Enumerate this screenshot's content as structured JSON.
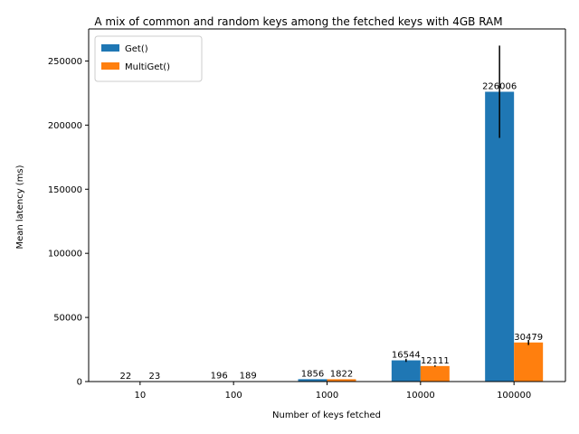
{
  "chart_data": {
    "type": "bar",
    "title": "A mix of common and random keys among the fetched keys with 4GB RAM",
    "xlabel": "Number of keys fetched",
    "ylabel": "Mean latency (ms)",
    "categories": [
      "10",
      "100",
      "1000",
      "10000",
      "100000"
    ],
    "ylim": [
      0,
      275000
    ],
    "yticks": [
      0,
      50000,
      100000,
      150000,
      200000,
      250000
    ],
    "legend_position": "top-left",
    "grid": false,
    "series": [
      {
        "name": "Get()",
        "color": "#1f77b4",
        "values": [
          22,
          196,
          1856,
          16544,
          226006
        ],
        "labels": [
          "22",
          "196",
          "1856",
          "16544",
          "226006"
        ],
        "error": [
          0,
          0,
          0,
          1200,
          36000
        ]
      },
      {
        "name": "MultiGet()",
        "color": "#ff7f0e",
        "values": [
          23,
          189,
          1822,
          12111,
          30479
        ],
        "labels": [
          "23",
          "189",
          "1822",
          "12111",
          "30479"
        ],
        "error": [
          0,
          0,
          0,
          500,
          2000
        ]
      }
    ]
  }
}
